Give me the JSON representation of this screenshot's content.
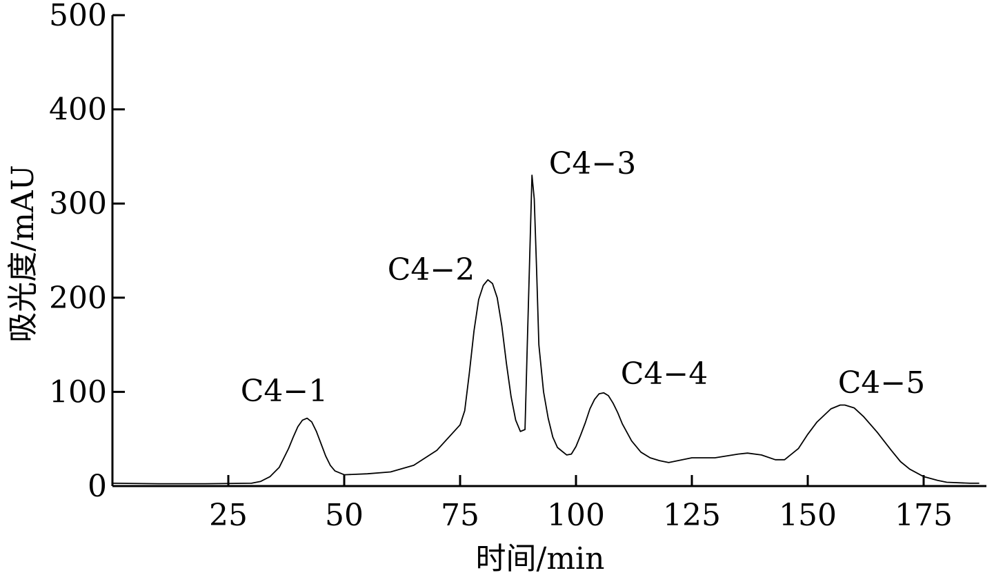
{
  "chart_data": {
    "type": "line",
    "title": "",
    "xlabel": "时间/min",
    "ylabel": "吸光度/mAU",
    "xlim": [
      0,
      190
    ],
    "ylim": [
      0,
      500
    ],
    "x_ticks": [
      25,
      50,
      75,
      100,
      125,
      150,
      175
    ],
    "x_tick_labels": [
      "25",
      "50",
      "75",
      "100",
      "125",
      "150",
      "175"
    ],
    "y_ticks": [
      0,
      100,
      200,
      300,
      400,
      500
    ],
    "y_tick_labels": [
      "0",
      "100",
      "200",
      "300",
      "400",
      "500"
    ],
    "grid": false,
    "series": [
      {
        "x": [
          0,
          10,
          20,
          30,
          32,
          34,
          36,
          38,
          39,
          40,
          41,
          42,
          43,
          44,
          45,
          46,
          47,
          48,
          50,
          55,
          60,
          65,
          70,
          75,
          76,
          77,
          78,
          79,
          80,
          81,
          82,
          83,
          84,
          85,
          86,
          87,
          88,
          89,
          89.5,
          90,
          90.5,
          91,
          91.5,
          92,
          93,
          94,
          95,
          96,
          97,
          98,
          99,
          100,
          101,
          102,
          103,
          104,
          105,
          106,
          107,
          108,
          109,
          110,
          112,
          114,
          116,
          118,
          120,
          125,
          130,
          135,
          137,
          140,
          143,
          145,
          148,
          150,
          152,
          155,
          157,
          158,
          160,
          162,
          165,
          168,
          170,
          172,
          175,
          178,
          180,
          185,
          187
        ],
        "y": [
          3,
          2.5,
          2.5,
          3,
          5,
          10,
          20,
          40,
          52,
          63,
          70,
          72,
          68,
          58,
          45,
          32,
          22,
          16,
          12,
          13,
          15,
          22,
          38,
          65,
          80,
          120,
          165,
          198,
          213,
          219,
          215,
          200,
          170,
          130,
          95,
          70,
          58,
          60,
          150,
          240,
          330,
          305,
          230,
          150,
          100,
          72,
          52,
          41,
          37,
          33,
          34,
          42,
          54,
          67,
          82,
          92,
          98,
          99,
          96,
          88,
          78,
          66,
          48,
          36,
          30,
          27,
          25,
          30,
          30,
          34,
          35,
          33,
          28,
          28,
          40,
          55,
          68,
          82,
          86,
          86,
          83,
          74,
          57,
          38,
          26,
          18,
          10,
          6,
          4,
          3,
          3
        ]
      }
    ],
    "annotations": [
      {
        "text": "C4−1",
        "x": 40.5,
        "y": 72
      },
      {
        "text": "C4−2",
        "x": 81.5,
        "y": 219
      },
      {
        "text": "C4−3",
        "x": 91,
        "y": 330
      },
      {
        "text": "C4−4",
        "x": 106.5,
        "y": 99
      },
      {
        "text": "C4−5",
        "x": 157.5,
        "y": 86
      }
    ]
  }
}
